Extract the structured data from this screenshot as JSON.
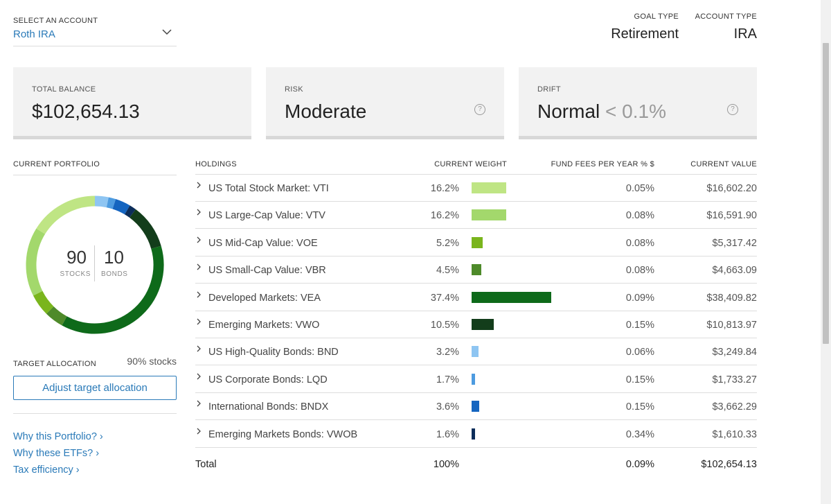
{
  "account": {
    "label": "SELECT AN ACCOUNT",
    "value": "Roth IRA"
  },
  "goal_type": {
    "label": "GOAL TYPE",
    "value": "Retirement"
  },
  "account_type": {
    "label": "ACCOUNT TYPE",
    "value": "IRA"
  },
  "cards": {
    "balance": {
      "label": "TOTAL BALANCE",
      "value": "$102,654.13"
    },
    "risk": {
      "label": "RISK",
      "value": "Moderate",
      "help": "?"
    },
    "drift": {
      "label": "DRIFT",
      "value": "Normal",
      "detail": "< 0.1%",
      "help": "?"
    }
  },
  "portfolio": {
    "label": "CURRENT PORTFOLIO",
    "stocks_num": "90",
    "stocks_label": "STOCKS",
    "bonds_num": "10",
    "bonds_label": "BONDS",
    "target_label": "TARGET ALLOCATION",
    "target_value": "90% stocks",
    "adjust_button": "Adjust target allocation",
    "links": [
      "Why this Portfolio? ›",
      "Why these ETFs? ›",
      "Tax efficiency ›"
    ]
  },
  "holdings": {
    "headers": {
      "name": "HOLDINGS",
      "weight": "CURRENT WEIGHT",
      "fees": "FUND FEES PER YEAR % $",
      "value": "CURRENT VALUE"
    },
    "rows": [
      {
        "name": "US Total Stock Market: VTI",
        "weight": "16.2%",
        "weight_pct": 16.2,
        "color": "#bfe584",
        "fee": "0.05%",
        "value": "$16,602.20"
      },
      {
        "name": "US Large-Cap Value: VTV",
        "weight": "16.2%",
        "weight_pct": 16.2,
        "color": "#a3d86c",
        "fee": "0.08%",
        "value": "$16,591.90"
      },
      {
        "name": "US Mid-Cap Value: VOE",
        "weight": "5.2%",
        "weight_pct": 5.2,
        "color": "#7ab51d",
        "fee": "0.08%",
        "value": "$5,317.42"
      },
      {
        "name": "US Small-Cap Value: VBR",
        "weight": "4.5%",
        "weight_pct": 4.5,
        "color": "#4e8a2a",
        "fee": "0.08%",
        "value": "$4,663.09"
      },
      {
        "name": "Developed Markets: VEA",
        "weight": "37.4%",
        "weight_pct": 37.4,
        "color": "#0e6a1a",
        "fee": "0.09%",
        "value": "$38,409.82"
      },
      {
        "name": "Emerging Markets: VWO",
        "weight": "10.5%",
        "weight_pct": 10.5,
        "color": "#133d1b",
        "fee": "0.15%",
        "value": "$10,813.97"
      },
      {
        "name": "US High-Quality Bonds: BND",
        "weight": "3.2%",
        "weight_pct": 3.2,
        "color": "#8ec5f2",
        "fee": "0.06%",
        "value": "$3,249.84"
      },
      {
        "name": "US Corporate Bonds: LQD",
        "weight": "1.7%",
        "weight_pct": 1.7,
        "color": "#4d9be0",
        "fee": "0.15%",
        "value": "$1,733.27"
      },
      {
        "name": "International Bonds: BNDX",
        "weight": "3.6%",
        "weight_pct": 3.6,
        "color": "#1565c0",
        "fee": "0.15%",
        "value": "$3,662.29"
      },
      {
        "name": "Emerging Markets Bonds: VWOB",
        "weight": "1.6%",
        "weight_pct": 1.6,
        "color": "#0c2d5a",
        "fee": "0.34%",
        "value": "$1,610.33"
      }
    ],
    "total": {
      "label": "Total",
      "weight": "100%",
      "fee": "0.09%",
      "value": "$102,654.13"
    }
  },
  "donut_order": [
    6,
    7,
    8,
    9,
    5,
    4,
    3,
    2,
    1,
    0
  ]
}
